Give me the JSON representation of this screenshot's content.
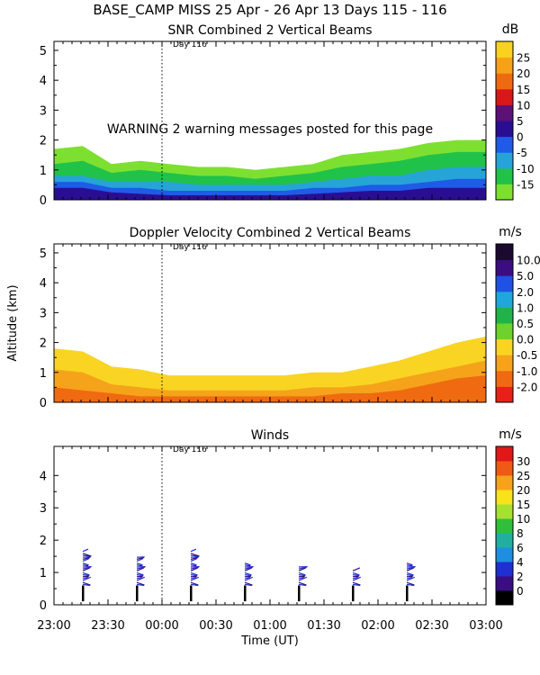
{
  "header": {
    "title": "BASE_CAMP MISS  25 Apr - 26 Apr 13 Days 115 - 116"
  },
  "warning_text": "WARNING  2 warning messages posted for this page",
  "shared": {
    "x_ticks": [
      "23:00",
      "23:30",
      "00:00",
      "00:30",
      "01:00",
      "01:30",
      "02:00",
      "02:30",
      "03:00"
    ],
    "xlabel": "Time (UT)",
    "day_marker": "Day 116",
    "day_marker_time": "00:00"
  },
  "chart_data": [
    {
      "type": "heatmap",
      "title": "SNR Combined 2 Vertical Beams",
      "ylabel": "",
      "ylim": [
        0,
        5.3
      ],
      "y_ticks": [
        "0",
        "1",
        "2",
        "3",
        "4",
        "5"
      ],
      "colorbar": {
        "unit": "dB",
        "labels": [
          "-15",
          "-10",
          "-5",
          "0",
          "5",
          "10",
          "15",
          "20",
          "25"
        ],
        "colors": [
          "#7de030",
          "#21c24a",
          "#26a4d8",
          "#1f5be6",
          "#2a0e92",
          "#5c1178",
          "#d81818",
          "#ee6a10",
          "#f5a21a",
          "#f9d21f"
        ]
      },
      "layers": [
        {
          "name": "-10 dB",
          "color": "#7de030",
          "top_km": [
            1.7,
            1.8,
            1.2,
            1.3,
            1.2,
            1.1,
            1.1,
            1.0,
            1.1,
            1.2,
            1.5,
            1.6,
            1.7,
            1.9,
            2.0,
            2.0
          ]
        },
        {
          "name": "-5 dB",
          "color": "#21c24a",
          "top_km": [
            1.2,
            1.3,
            0.9,
            1.0,
            0.9,
            0.8,
            0.8,
            0.7,
            0.8,
            0.9,
            1.1,
            1.2,
            1.3,
            1.5,
            1.6,
            1.6
          ]
        },
        {
          "name": "0 dB",
          "color": "#26a4d8",
          "top_km": [
            0.8,
            0.8,
            0.6,
            0.6,
            0.6,
            0.5,
            0.5,
            0.5,
            0.5,
            0.6,
            0.7,
            0.8,
            0.8,
            1.0,
            1.1,
            1.1
          ]
        },
        {
          "name": "5 dB",
          "color": "#1f5be6",
          "top_km": [
            0.6,
            0.6,
            0.4,
            0.4,
            0.3,
            0.3,
            0.3,
            0.3,
            0.3,
            0.4,
            0.4,
            0.5,
            0.5,
            0.6,
            0.7,
            0.7
          ]
        },
        {
          "name": "10 dB",
          "color": "#2a0e92",
          "top_km": [
            0.4,
            0.4,
            0.25,
            0.2,
            0.15,
            0.15,
            0.15,
            0.15,
            0.15,
            0.2,
            0.25,
            0.3,
            0.3,
            0.4,
            0.4,
            0.4
          ]
        }
      ]
    },
    {
      "type": "heatmap",
      "title": "Doppler Velocity Combined 2 Vertical Beams",
      "ylabel": "Altitude (km)",
      "ylim": [
        0,
        5.3
      ],
      "y_ticks": [
        "0",
        "1",
        "2",
        "3",
        "4",
        "5"
      ],
      "colorbar": {
        "unit": "m/s",
        "labels": [
          "-2.0",
          "-1.0",
          "-0.5",
          "0.0",
          "0.5",
          "1.0",
          "2.0",
          "5.0",
          "10.0"
        ],
        "colors": [
          "#e8201a",
          "#f06a12",
          "#f5a31a",
          "#f9d422",
          "#6ed12d",
          "#21b34a",
          "#1fa7dc",
          "#1f52e4",
          "#3a0e80",
          "#1a0a30"
        ]
      },
      "layers": [
        {
          "name": "0.0 m/s",
          "color": "#f9d422",
          "top_km": [
            1.8,
            1.7,
            1.2,
            1.1,
            0.9,
            0.9,
            0.9,
            0.9,
            0.9,
            1.0,
            1.0,
            1.2,
            1.4,
            1.7,
            2.0,
            2.2
          ]
        },
        {
          "name": "-0.5 m/s",
          "color": "#f5a31a",
          "top_km": [
            1.1,
            1.0,
            0.6,
            0.5,
            0.4,
            0.4,
            0.4,
            0.4,
            0.4,
            0.5,
            0.5,
            0.6,
            0.8,
            1.0,
            1.2,
            1.4
          ]
        },
        {
          "name": "-1.0 m/s",
          "color": "#f06a12",
          "top_km": [
            0.5,
            0.4,
            0.3,
            0.2,
            0.2,
            0.2,
            0.2,
            0.2,
            0.2,
            0.2,
            0.3,
            0.3,
            0.4,
            0.6,
            0.8,
            0.9
          ]
        }
      ]
    },
    {
      "type": "scatter",
      "title": "Winds",
      "ylabel": "",
      "ylim": [
        0,
        4.9
      ],
      "y_ticks": [
        "0",
        "1",
        "2",
        "3",
        "4"
      ],
      "colorbar": {
        "unit": "m/s",
        "labels": [
          "0",
          "2",
          "4",
          "6",
          "8",
          "10",
          "15",
          "20",
          "25",
          "30"
        ],
        "colors": [
          "#000000",
          "#3a0e80",
          "#1f2fd0",
          "#1f8ee0",
          "#21b0a0",
          "#2fbf3a",
          "#a8e030",
          "#f7e21c",
          "#f5a31a",
          "#ee5a14",
          "#e01818"
        ]
      },
      "profiles": [
        {
          "time": "23:16",
          "top_km": 1.7
        },
        {
          "time": "23:46",
          "top_km": 1.5
        },
        {
          "time": "00:16",
          "top_km": 1.7
        },
        {
          "time": "00:46",
          "top_km": 1.3
        },
        {
          "time": "01:16",
          "top_km": 1.2
        },
        {
          "time": "01:46",
          "top_km": 1.1
        },
        {
          "time": "02:16",
          "top_km": 1.3
        }
      ]
    }
  ]
}
